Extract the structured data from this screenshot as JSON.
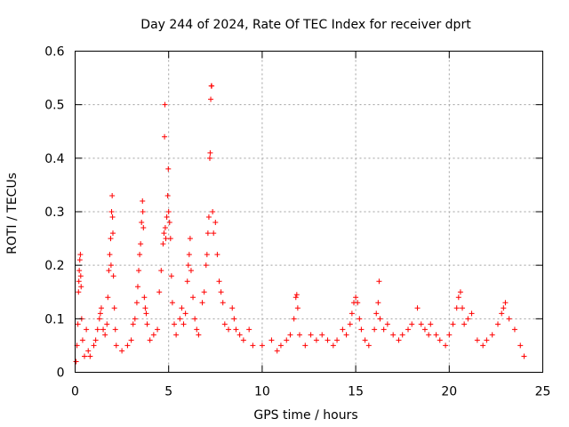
{
  "chart_data": {
    "type": "scatter",
    "title": "Day 244 of 2024, Rate Of TEC Index for receiver dprt",
    "xlabel": "GPS time / hours",
    "ylabel": "ROTI / TECUs",
    "xlim": [
      0,
      25
    ],
    "ylim": [
      0,
      0.6
    ],
    "xticks": [
      0,
      5,
      10,
      15,
      20,
      25
    ],
    "yticks": [
      0,
      0.1,
      0.2,
      0.3,
      0.4,
      0.5,
      0.6
    ],
    "xtick_labels": [
      "0",
      "5",
      "10",
      "15",
      "20",
      "25"
    ],
    "ytick_labels": [
      "0",
      "0.1",
      "0.2",
      "0.3",
      "0.4",
      "0.5",
      "0.6"
    ],
    "grid": true,
    "marker": "+",
    "color": "#ff0000",
    "series": [
      {
        "name": "dprt",
        "points": [
          [
            0.05,
            0.02
          ],
          [
            0.1,
            0.05
          ],
          [
            0.15,
            0.09
          ],
          [
            0.18,
            0.15
          ],
          [
            0.2,
            0.17
          ],
          [
            0.22,
            0.19
          ],
          [
            0.25,
            0.21
          ],
          [
            0.28,
            0.22
          ],
          [
            0.3,
            0.18
          ],
          [
            0.32,
            0.16
          ],
          [
            0.35,
            0.1
          ],
          [
            0.4,
            0.06
          ],
          [
            0.5,
            0.03
          ],
          [
            0.6,
            0.08
          ],
          [
            0.7,
            0.04
          ],
          [
            0.8,
            0.03
          ],
          [
            1.0,
            0.05
          ],
          [
            1.1,
            0.06
          ],
          [
            1.2,
            0.08
          ],
          [
            1.3,
            0.1
          ],
          [
            1.35,
            0.11
          ],
          [
            1.4,
            0.12
          ],
          [
            1.5,
            0.08
          ],
          [
            1.6,
            0.07
          ],
          [
            1.7,
            0.09
          ],
          [
            1.75,
            0.14
          ],
          [
            1.8,
            0.19
          ],
          [
            1.85,
            0.22
          ],
          [
            1.9,
            0.25
          ],
          [
            1.92,
            0.2
          ],
          [
            1.95,
            0.3
          ],
          [
            1.98,
            0.33
          ],
          [
            2.0,
            0.29
          ],
          [
            2.02,
            0.26
          ],
          [
            2.05,
            0.18
          ],
          [
            2.1,
            0.12
          ],
          [
            2.15,
            0.08
          ],
          [
            2.2,
            0.05
          ],
          [
            2.5,
            0.04
          ],
          [
            2.8,
            0.05
          ],
          [
            3.0,
            0.06
          ],
          [
            3.1,
            0.09
          ],
          [
            3.2,
            0.1
          ],
          [
            3.3,
            0.13
          ],
          [
            3.35,
            0.16
          ],
          [
            3.4,
            0.19
          ],
          [
            3.45,
            0.22
          ],
          [
            3.5,
            0.24
          ],
          [
            3.55,
            0.28
          ],
          [
            3.6,
            0.32
          ],
          [
            3.62,
            0.3
          ],
          [
            3.65,
            0.27
          ],
          [
            3.7,
            0.14
          ],
          [
            3.75,
            0.12
          ],
          [
            3.8,
            0.11
          ],
          [
            3.85,
            0.09
          ],
          [
            4.0,
            0.06
          ],
          [
            4.2,
            0.07
          ],
          [
            4.4,
            0.08
          ],
          [
            4.5,
            0.15
          ],
          [
            4.6,
            0.19
          ],
          [
            4.7,
            0.24
          ],
          [
            4.75,
            0.26
          ],
          [
            4.78,
            0.44
          ],
          [
            4.8,
            0.5
          ],
          [
            4.82,
            0.27
          ],
          [
            4.85,
            0.25
          ],
          [
            4.9,
            0.29
          ],
          [
            4.95,
            0.33
          ],
          [
            4.98,
            0.38
          ],
          [
            5.0,
            0.3
          ],
          [
            5.05,
            0.28
          ],
          [
            5.1,
            0.25
          ],
          [
            5.15,
            0.18
          ],
          [
            5.2,
            0.13
          ],
          [
            5.3,
            0.09
          ],
          [
            5.4,
            0.07
          ],
          [
            5.6,
            0.1
          ],
          [
            5.7,
            0.12
          ],
          [
            5.8,
            0.09
          ],
          [
            5.9,
            0.11
          ],
          [
            6.0,
            0.17
          ],
          [
            6.05,
            0.2
          ],
          [
            6.1,
            0.22
          ],
          [
            6.15,
            0.25
          ],
          [
            6.2,
            0.19
          ],
          [
            6.3,
            0.14
          ],
          [
            6.4,
            0.1
          ],
          [
            6.5,
            0.08
          ],
          [
            6.6,
            0.07
          ],
          [
            6.8,
            0.13
          ],
          [
            6.9,
            0.15
          ],
          [
            7.0,
            0.2
          ],
          [
            7.05,
            0.22
          ],
          [
            7.1,
            0.26
          ],
          [
            7.15,
            0.29
          ],
          [
            7.2,
            0.4
          ],
          [
            7.22,
            0.41
          ],
          [
            7.25,
            0.51
          ],
          [
            7.28,
            0.535
          ],
          [
            7.3,
            0.535
          ],
          [
            7.35,
            0.3
          ],
          [
            7.4,
            0.26
          ],
          [
            7.5,
            0.28
          ],
          [
            7.6,
            0.22
          ],
          [
            7.7,
            0.17
          ],
          [
            7.8,
            0.15
          ],
          [
            7.9,
            0.13
          ],
          [
            8.0,
            0.09
          ],
          [
            8.2,
            0.08
          ],
          [
            8.4,
            0.12
          ],
          [
            8.5,
            0.1
          ],
          [
            8.6,
            0.08
          ],
          [
            8.8,
            0.07
          ],
          [
            9.0,
            0.06
          ],
          [
            9.3,
            0.08
          ],
          [
            9.5,
            0.05
          ],
          [
            10.0,
            0.05
          ],
          [
            10.5,
            0.06
          ],
          [
            10.8,
            0.04
          ],
          [
            11.0,
            0.05
          ],
          [
            11.3,
            0.06
          ],
          [
            11.5,
            0.07
          ],
          [
            11.7,
            0.1
          ],
          [
            11.8,
            0.14
          ],
          [
            11.85,
            0.145
          ],
          [
            11.9,
            0.12
          ],
          [
            12.0,
            0.07
          ],
          [
            12.3,
            0.05
          ],
          [
            12.6,
            0.07
          ],
          [
            12.9,
            0.06
          ],
          [
            13.2,
            0.07
          ],
          [
            13.5,
            0.06
          ],
          [
            13.8,
            0.05
          ],
          [
            14.0,
            0.06
          ],
          [
            14.3,
            0.08
          ],
          [
            14.5,
            0.07
          ],
          [
            14.7,
            0.09
          ],
          [
            14.8,
            0.11
          ],
          [
            14.9,
            0.13
          ],
          [
            15.0,
            0.14
          ],
          [
            15.1,
            0.13
          ],
          [
            15.2,
            0.1
          ],
          [
            15.3,
            0.08
          ],
          [
            15.5,
            0.06
          ],
          [
            15.7,
            0.05
          ],
          [
            16.0,
            0.08
          ],
          [
            16.1,
            0.11
          ],
          [
            16.2,
            0.13
          ],
          [
            16.25,
            0.17
          ],
          [
            16.3,
            0.1
          ],
          [
            16.5,
            0.08
          ],
          [
            16.7,
            0.09
          ],
          [
            17.0,
            0.07
          ],
          [
            17.3,
            0.06
          ],
          [
            17.5,
            0.07
          ],
          [
            17.8,
            0.08
          ],
          [
            18.0,
            0.09
          ],
          [
            18.3,
            0.12
          ],
          [
            18.5,
            0.09
          ],
          [
            18.7,
            0.08
          ],
          [
            18.9,
            0.07
          ],
          [
            19.0,
            0.09
          ],
          [
            19.3,
            0.07
          ],
          [
            19.5,
            0.06
          ],
          [
            19.8,
            0.05
          ],
          [
            20.0,
            0.07
          ],
          [
            20.2,
            0.09
          ],
          [
            20.4,
            0.12
          ],
          [
            20.5,
            0.14
          ],
          [
            20.6,
            0.15
          ],
          [
            20.7,
            0.12
          ],
          [
            20.8,
            0.09
          ],
          [
            21.0,
            0.1
          ],
          [
            21.2,
            0.11
          ],
          [
            21.5,
            0.06
          ],
          [
            21.8,
            0.05
          ],
          [
            22.0,
            0.06
          ],
          [
            22.3,
            0.07
          ],
          [
            22.6,
            0.09
          ],
          [
            22.8,
            0.11
          ],
          [
            22.9,
            0.12
          ],
          [
            23.0,
            0.13
          ],
          [
            23.2,
            0.1
          ],
          [
            23.5,
            0.08
          ],
          [
            23.8,
            0.05
          ],
          [
            24.0,
            0.03
          ]
        ]
      }
    ]
  }
}
